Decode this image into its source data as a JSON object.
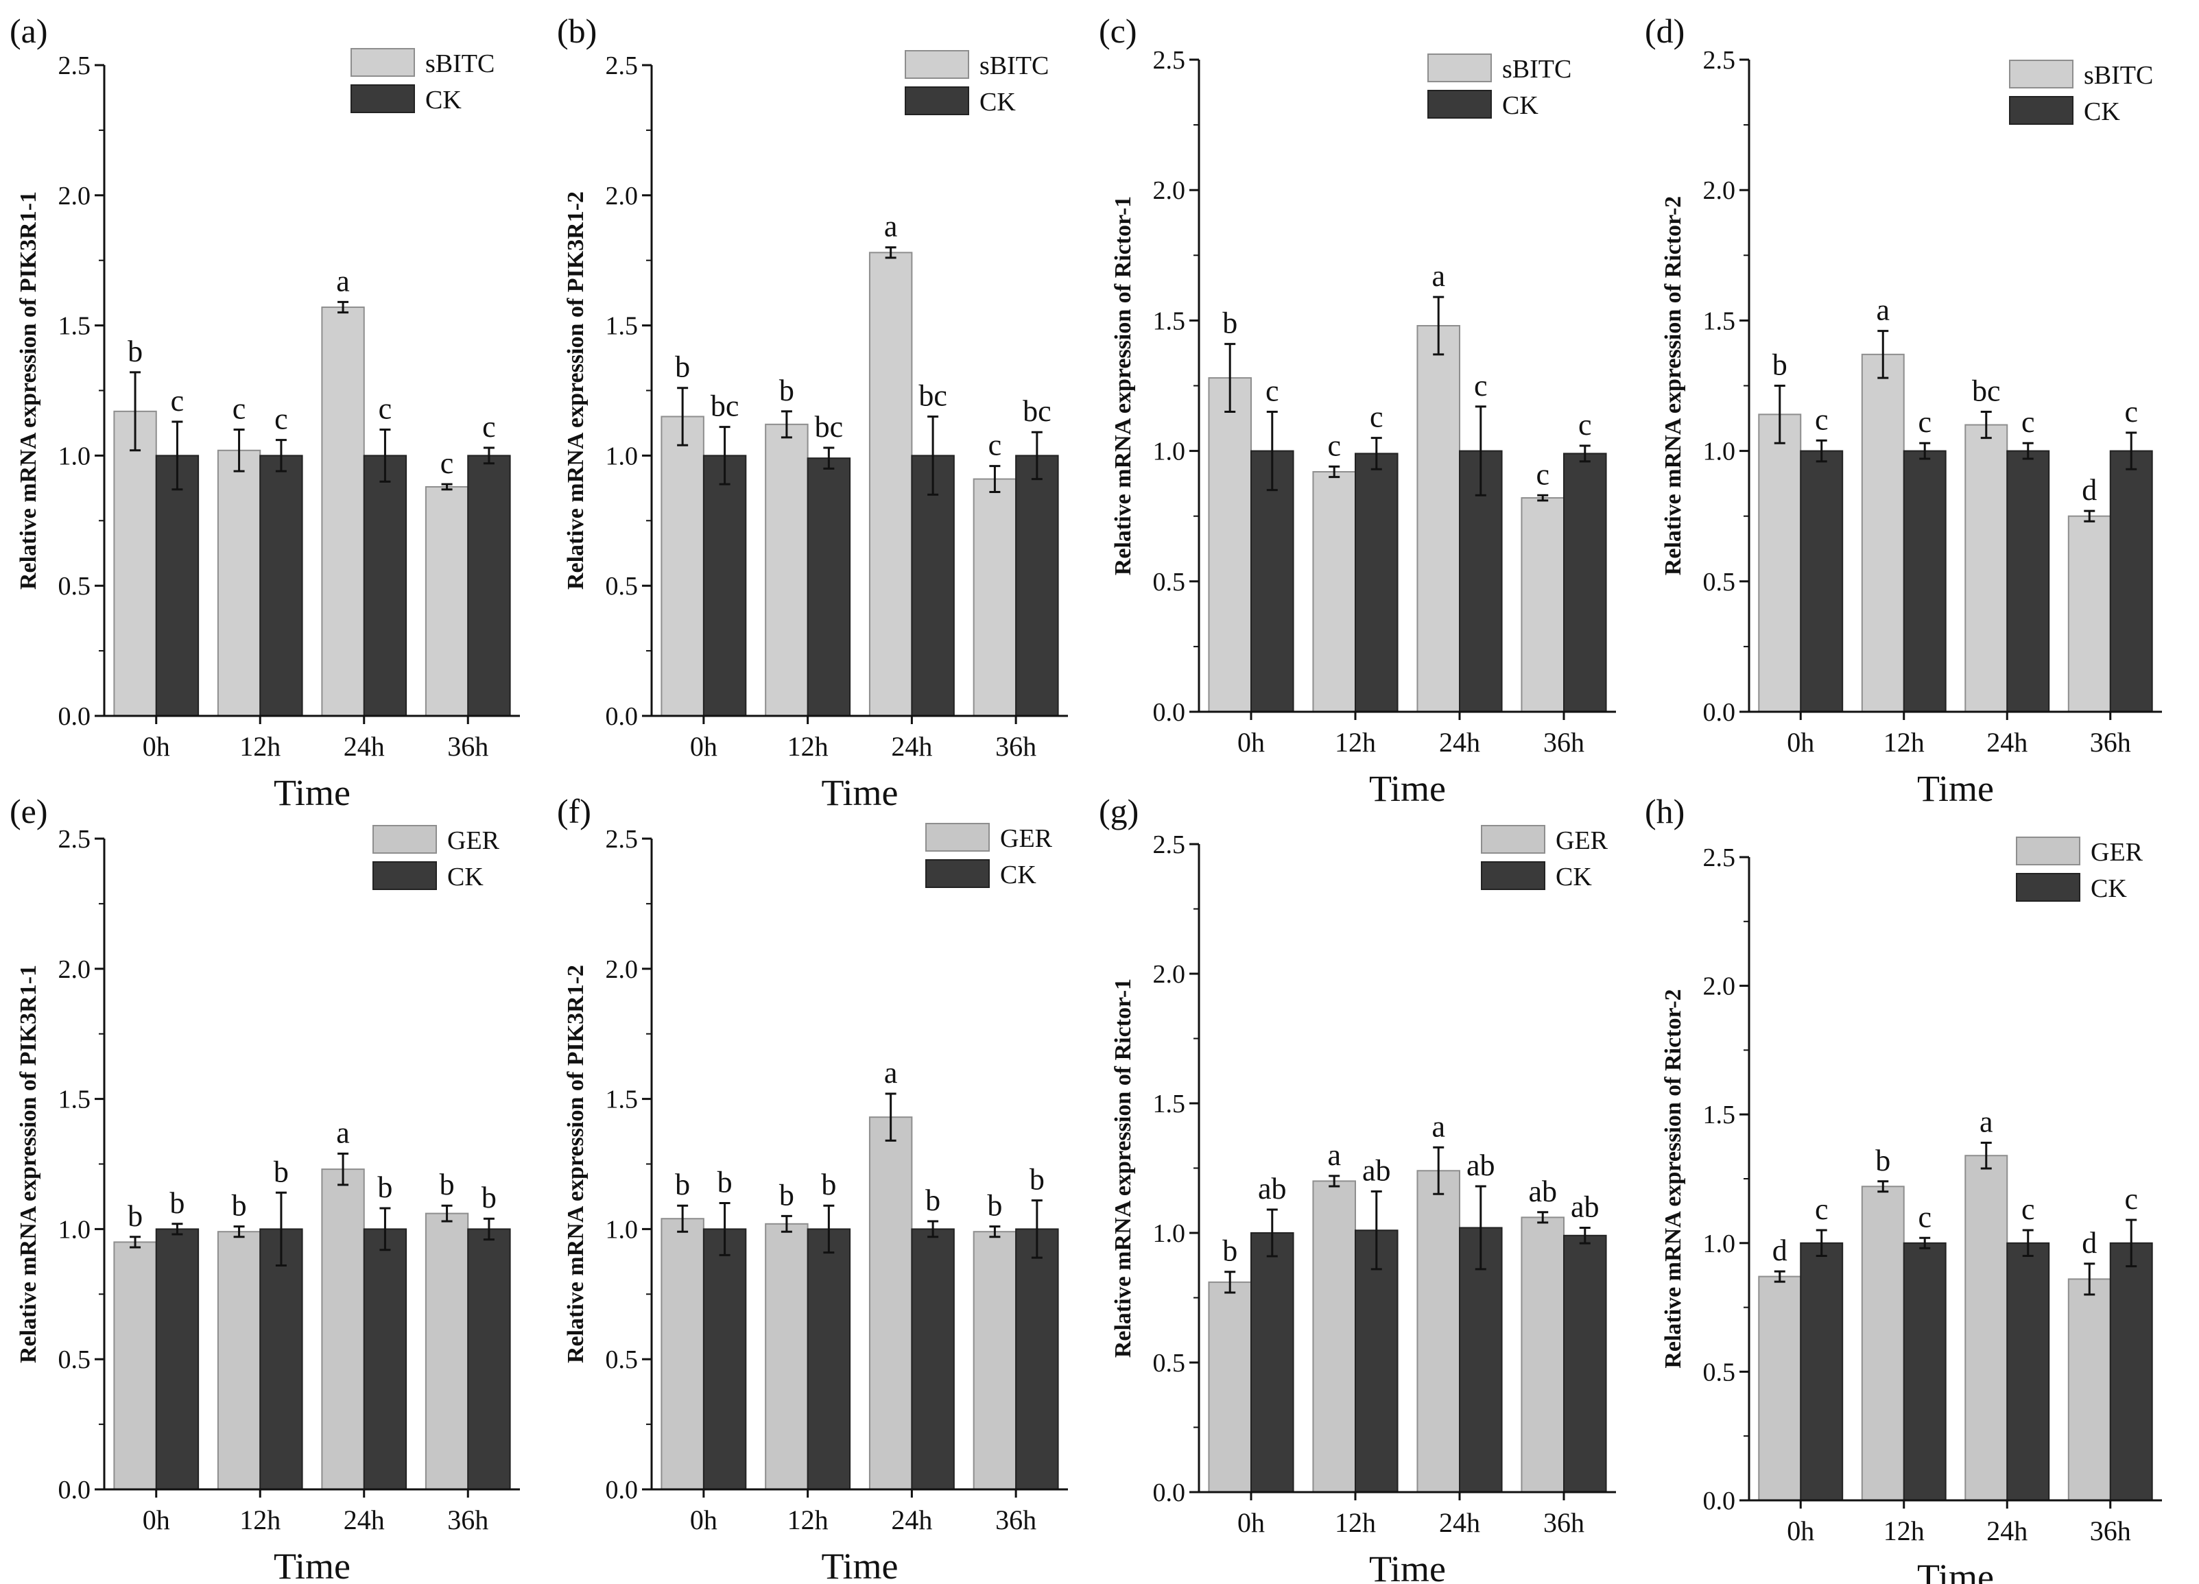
{
  "chart_data": [
    {
      "panel": "(a)",
      "type": "bar",
      "categories": [
        "0h",
        "12h",
        "24h",
        "36h"
      ],
      "xlabel": "Time",
      "ylabel": "Relative mRNA expression of PIK3R1-1",
      "ylim": [
        0,
        2.5
      ],
      "yticks": [
        "0.0",
        "0.5",
        "1.0",
        "1.5",
        "2.0",
        "2.5"
      ],
      "legend_position": "top-right",
      "series": [
        {
          "name": "sBITC",
          "values": [
            1.17,
            1.02,
            1.57,
            0.88
          ],
          "errors": [
            0.15,
            0.08,
            0.02,
            0.01
          ],
          "letters": [
            "b",
            "c",
            "a",
            "c"
          ]
        },
        {
          "name": "CK",
          "values": [
            1.0,
            1.0,
            1.0,
            1.0
          ],
          "errors": [
            0.13,
            0.06,
            0.1,
            0.03
          ],
          "letters": [
            "c",
            "c",
            "c",
            "c"
          ]
        }
      ]
    },
    {
      "panel": "(b)",
      "type": "bar",
      "categories": [
        "0h",
        "12h",
        "24h",
        "36h"
      ],
      "xlabel": "Time",
      "ylabel": "Relative mRNA expression of PIK3R1-2",
      "ylim": [
        0,
        2.5
      ],
      "yticks": [
        "0.0",
        "0.5",
        "1.0",
        "1.5",
        "2.0",
        "2.5"
      ],
      "legend_position": "top-right",
      "series": [
        {
          "name": "sBITC",
          "values": [
            1.15,
            1.12,
            1.78,
            0.91
          ],
          "errors": [
            0.11,
            0.05,
            0.02,
            0.05
          ],
          "letters": [
            "b",
            "b",
            "a",
            "c"
          ]
        },
        {
          "name": "CK",
          "values": [
            1.0,
            0.99,
            1.0,
            1.0
          ],
          "errors": [
            0.11,
            0.04,
            0.15,
            0.09
          ],
          "letters": [
            "bc",
            "bc",
            "bc",
            "bc"
          ]
        }
      ]
    },
    {
      "panel": "(c)",
      "type": "bar",
      "categories": [
        "0h",
        "12h",
        "24h",
        "36h"
      ],
      "xlabel": "Time",
      "ylabel": "Relative mRNA expression of Rictor-1",
      "ylim": [
        0,
        2.5
      ],
      "yticks": [
        "0.0",
        "0.5",
        "1.0",
        "1.5",
        "2.0",
        "2.5"
      ],
      "legend_position": "top-right",
      "series": [
        {
          "name": "sBITC",
          "values": [
            1.28,
            0.92,
            1.48,
            0.82
          ],
          "errors": [
            0.13,
            0.02,
            0.11,
            0.01
          ],
          "letters": [
            "b",
            "c",
            "a",
            "c"
          ]
        },
        {
          "name": "CK",
          "values": [
            1.0,
            0.99,
            1.0,
            0.99
          ],
          "errors": [
            0.15,
            0.06,
            0.17,
            0.03
          ],
          "letters": [
            "c",
            "c",
            "c",
            "c"
          ]
        }
      ]
    },
    {
      "panel": "(d)",
      "type": "bar",
      "categories": [
        "0h",
        "12h",
        "24h",
        "36h"
      ],
      "xlabel": "Time",
      "ylabel": "Relative mRNA expression of Rictor-2",
      "ylim": [
        0,
        2.5
      ],
      "yticks": [
        "0.0",
        "0.5",
        "1.0",
        "1.5",
        "2.0",
        "2.5"
      ],
      "legend_position": "top-right",
      "series": [
        {
          "name": "sBITC",
          "values": [
            1.14,
            1.37,
            1.1,
            0.75
          ],
          "errors": [
            0.11,
            0.09,
            0.05,
            0.02
          ],
          "letters": [
            "b",
            "a",
            "bc",
            "d"
          ]
        },
        {
          "name": "CK",
          "values": [
            1.0,
            1.0,
            1.0,
            1.0
          ],
          "errors": [
            0.04,
            0.03,
            0.03,
            0.07
          ],
          "letters": [
            "c",
            "c",
            "c",
            "c"
          ]
        }
      ]
    },
    {
      "panel": "(e)",
      "type": "bar",
      "categories": [
        "0h",
        "12h",
        "24h",
        "36h"
      ],
      "xlabel": "Time",
      "ylabel": "Relative mRNA expression of PIK3R1-1",
      "ylim": [
        0,
        2.5
      ],
      "yticks": [
        "0.0",
        "0.5",
        "1.0",
        "1.5",
        "2.0",
        "2.5"
      ],
      "legend_position": "top-right",
      "series": [
        {
          "name": "GER",
          "values": [
            0.95,
            0.99,
            1.23,
            1.06
          ],
          "errors": [
            0.02,
            0.02,
            0.06,
            0.03
          ],
          "letters": [
            "b",
            "b",
            "a",
            "b"
          ]
        },
        {
          "name": "CK",
          "values": [
            1.0,
            1.0,
            1.0,
            1.0
          ],
          "errors": [
            0.02,
            0.14,
            0.08,
            0.04
          ],
          "letters": [
            "b",
            "b",
            "b",
            "b"
          ]
        }
      ]
    },
    {
      "panel": "(f)",
      "type": "bar",
      "categories": [
        "0h",
        "12h",
        "24h",
        "36h"
      ],
      "xlabel": "Time",
      "ylabel": "Relative mRNA expression of PIK3R1-2",
      "ylim": [
        0,
        2.5
      ],
      "yticks": [
        "0.0",
        "0.5",
        "1.0",
        "1.5",
        "2.0",
        "2.5"
      ],
      "legend_position": "top-right",
      "series": [
        {
          "name": "GER",
          "values": [
            1.04,
            1.02,
            1.43,
            0.99
          ],
          "errors": [
            0.05,
            0.03,
            0.09,
            0.02
          ],
          "letters": [
            "b",
            "b",
            "a",
            "b"
          ]
        },
        {
          "name": "CK",
          "values": [
            1.0,
            1.0,
            1.0,
            1.0
          ],
          "errors": [
            0.1,
            0.09,
            0.03,
            0.11
          ],
          "letters": [
            "b",
            "b",
            "b",
            "b"
          ]
        }
      ]
    },
    {
      "panel": "(g)",
      "type": "bar",
      "categories": [
        "0h",
        "12h",
        "24h",
        "36h"
      ],
      "xlabel": "Time",
      "ylabel": "Relative mRNA expression of Rictor-1",
      "ylim": [
        0,
        2.5
      ],
      "yticks": [
        "0.0",
        "0.5",
        "1.0",
        "1.5",
        "2.0",
        "2.5"
      ],
      "legend_position": "top-right",
      "series": [
        {
          "name": "GER",
          "values": [
            0.81,
            1.2,
            1.24,
            1.06
          ],
          "errors": [
            0.04,
            0.02,
            0.09,
            0.02
          ],
          "letters": [
            "b",
            "a",
            "a",
            "ab"
          ]
        },
        {
          "name": "CK",
          "values": [
            1.0,
            1.01,
            1.02,
            0.99
          ],
          "errors": [
            0.09,
            0.15,
            0.16,
            0.03
          ],
          "letters": [
            "ab",
            "ab",
            "ab",
            "ab"
          ]
        }
      ]
    },
    {
      "panel": "(h)",
      "type": "bar",
      "categories": [
        "0h",
        "12h",
        "24h",
        "36h"
      ],
      "xlabel": "Time",
      "ylabel": "Relative mRNA expression of Rictor-2",
      "ylim": [
        0,
        2.5
      ],
      "yticks": [
        "0.0",
        "0.5",
        "1.0",
        "1.5",
        "2.0",
        "2.5"
      ],
      "legend_position": "top-right",
      "series": [
        {
          "name": "GER",
          "values": [
            0.87,
            1.22,
            1.34,
            0.86
          ],
          "errors": [
            0.02,
            0.02,
            0.05,
            0.06
          ],
          "letters": [
            "d",
            "b",
            "a",
            "d"
          ]
        },
        {
          "name": "CK",
          "values": [
            1.0,
            1.0,
            1.0,
            1.0
          ],
          "errors": [
            0.05,
            0.02,
            0.05,
            0.09
          ],
          "letters": [
            "c",
            "c",
            "c",
            "c"
          ]
        }
      ]
    }
  ],
  "colors": {
    "treatment_fill": "#cfcfcf",
    "treatment_fill_bottom": "#c6c6c6",
    "ck_fill": "#3a3a3a",
    "axis": "#111111"
  }
}
